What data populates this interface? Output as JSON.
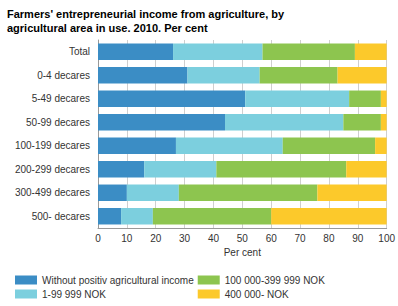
{
  "chart_data": {
    "type": "bar",
    "title": "Farmers' entrepreneurial income from agriculture, by agricultural area in use. 2010. Per cent",
    "x_label": "Per cent",
    "orientation": "horizontal",
    "stacked": true,
    "grid": true,
    "legend": "bottom",
    "categories": [
      "Total",
      "0-4 decares",
      "5-49 decares",
      "50-99 decares",
      "100-199 decares",
      "200-299 decares",
      "300-499 decares",
      "500- decares"
    ],
    "xlim": [
      0,
      100
    ],
    "xticks": [
      0,
      10,
      20,
      30,
      40,
      50,
      60,
      70,
      80,
      90,
      100
    ],
    "series": [
      {
        "name": "Without positiv agricultural income",
        "color": "#3b8dc5",
        "values": [
          26,
          31,
          51,
          44,
          27,
          16,
          10,
          8
        ]
      },
      {
        "name": "1-99 999 NOK",
        "color": "#7ccfde",
        "values": [
          31,
          25,
          36,
          41,
          37,
          25,
          18,
          11
        ]
      },
      {
        "name": "100 000-399 999 NOK",
        "color": "#8dc54f",
        "values": [
          32,
          27,
          11,
          13,
          32,
          45,
          48,
          41
        ]
      },
      {
        "name": "400 000- NOK",
        "color": "#fcc92b",
        "values": [
          11,
          17,
          2,
          2,
          4,
          14,
          24,
          40
        ]
      }
    ]
  }
}
